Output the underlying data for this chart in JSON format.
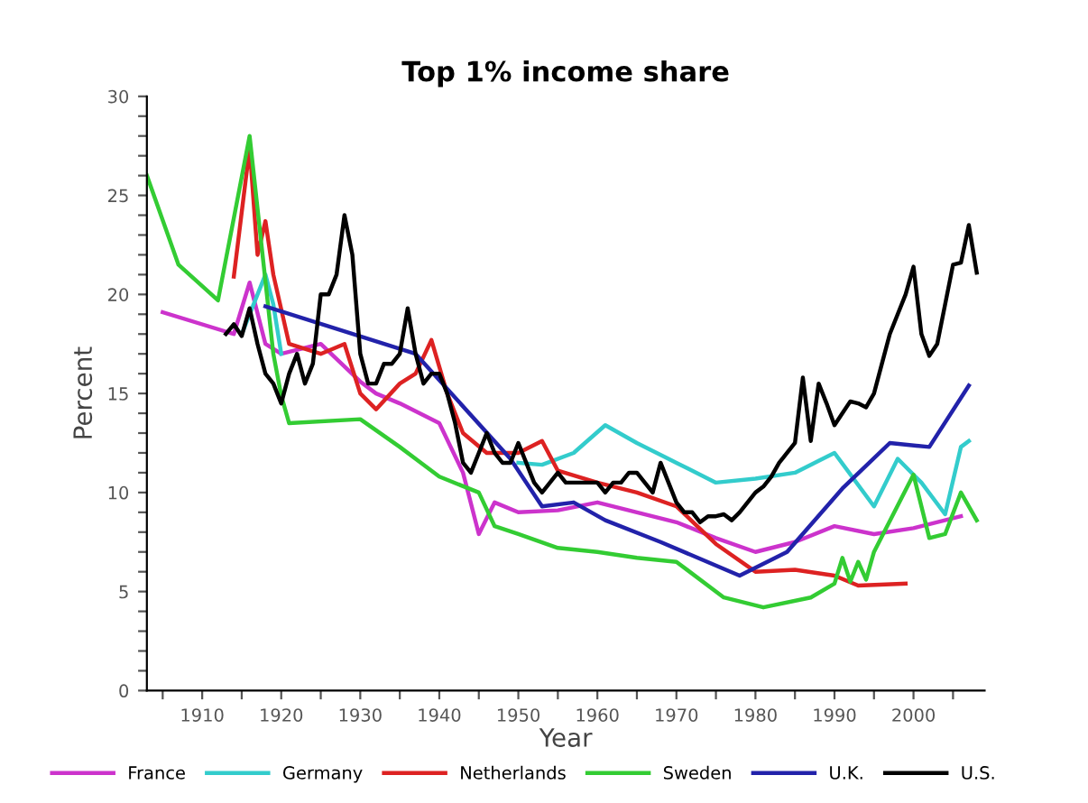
{
  "chart_data": {
    "type": "line",
    "title": "Top 1% income share",
    "xlabel": "Year",
    "ylabel": "Percent",
    "xlim": [
      1903,
      2009
    ],
    "ylim": [
      0,
      30
    ],
    "xticks": [
      {
        "value": 1905,
        "label": null
      },
      1910,
      {
        "value": 1915,
        "label": null
      },
      1920,
      {
        "value": 1925,
        "label": null
      },
      1930,
      {
        "value": 1935,
        "label": null
      },
      1940,
      {
        "value": 1945,
        "label": null
      },
      1950,
      {
        "value": 1955,
        "label": null
      },
      1960,
      {
        "value": 1965,
        "label": null
      },
      1970,
      {
        "value": 1975,
        "label": null
      },
      1980,
      {
        "value": 1985,
        "label": null
      },
      1990,
      {
        "value": 1995,
        "label": null
      },
      2000,
      {
        "value": 2005,
        "label": null
      }
    ],
    "yticks": [
      0,
      {
        "value": 1,
        "label": null
      },
      {
        "value": 2,
        "label": null
      },
      {
        "value": 3,
        "label": null
      },
      {
        "value": 4,
        "label": null
      },
      5,
      {
        "value": 6,
        "label": null
      },
      {
        "value": 7,
        "label": null
      },
      {
        "value": 8,
        "label": null
      },
      {
        "value": 9,
        "label": null
      },
      10,
      {
        "value": 11,
        "label": null
      },
      {
        "value": 12,
        "label": null
      },
      {
        "value": 13,
        "label": null
      },
      {
        "value": 14,
        "label": null
      },
      15,
      {
        "value": 16,
        "label": null
      },
      {
        "value": 17,
        "label": null
      },
      {
        "value": 18,
        "label": null
      },
      {
        "value": 19,
        "label": null
      },
      20,
      {
        "value": 21,
        "label": null
      },
      {
        "value": 22,
        "label": null
      },
      {
        "value": 23,
        "label": null
      },
      {
        "value": 24,
        "label": null
      },
      25,
      {
        "value": 26,
        "label": null
      },
      {
        "value": 27,
        "label": null
      },
      {
        "value": 28,
        "label": null
      },
      {
        "value": 29,
        "label": null
      },
      30
    ],
    "grid": false,
    "legend": "bottom",
    "marker": "none",
    "line_style": "solid",
    "series": [
      {
        "name": "France",
        "color": "#cc33cc",
        "x": [
          1905,
          1914,
          1916,
          1918,
          1920,
          1925,
          1930,
          1932,
          1935,
          1940,
          1943,
          1945,
          1947,
          1950,
          1955,
          1960,
          1965,
          1970,
          1975,
          1980,
          1985,
          1990,
          1995,
          2000,
          2006
        ],
        "values": [
          19.1,
          18,
          20.6,
          17.5,
          17,
          17.5,
          15.6,
          15,
          14.5,
          13.5,
          11,
          7.9,
          9.5,
          9,
          9.1,
          9.5,
          9,
          8.5,
          7.7,
          7,
          7.5,
          8.3,
          7.9,
          8.2,
          8.8
        ]
      },
      {
        "name": "Germany",
        "color": "#33cccc",
        "x": [
          1915,
          1918,
          1919,
          1920,
          1925,
          1950,
          1953,
          1957,
          1961,
          1965,
          1970,
          1975,
          1980,
          1985,
          1990,
          1995,
          1998,
          2001,
          2004,
          2006,
          2007
        ],
        "values": [
          18,
          21,
          19.5,
          17,
          null,
          11.5,
          11.4,
          12,
          13.4,
          12.5,
          11.5,
          10.5,
          10.7,
          11,
          12,
          9.3,
          11.7,
          10.5,
          8.9,
          12.3,
          12.6
        ]
      },
      {
        "name": "Netherlands",
        "color": "#dd2222",
        "x": [
          1914,
          1916,
          1917,
          1918,
          1919,
          1921,
          1925,
          1928,
          1930,
          1932,
          1935,
          1937,
          1939,
          1941,
          1943,
          1946,
          1950,
          1953,
          1955,
          1960,
          1965,
          1970,
          1975,
          1980,
          1985,
          1990,
          1993,
          1999
        ],
        "values": [
          20.9,
          27.4,
          22,
          23.7,
          21,
          17.5,
          17,
          17.5,
          15,
          14.2,
          15.5,
          16,
          17.7,
          15,
          13,
          12,
          12,
          12.6,
          11.1,
          10.5,
          10,
          9.3,
          7.4,
          6,
          6.1,
          5.8,
          5.3,
          5.4
        ]
      },
      {
        "name": "Sweden",
        "color": "#33cc33",
        "x": [
          1903,
          1907,
          1912,
          1916,
          1919,
          1920,
          1921,
          1930,
          1935,
          1940,
          1945,
          1947,
          1950,
          1955,
          1960,
          1965,
          1970,
          1976,
          1981,
          1987,
          1990,
          1991,
          1992,
          1993,
          1994,
          1995,
          2000,
          2002,
          2004,
          2006,
          2008
        ],
        "values": [
          26,
          21.5,
          19.7,
          28,
          17,
          14.9,
          13.5,
          13.7,
          12.3,
          10.8,
          10,
          8.3,
          7.9,
          7.2,
          7,
          6.7,
          6.5,
          4.7,
          4.2,
          4.7,
          5.4,
          6.7,
          5.5,
          6.5,
          5.6,
          7,
          10.9,
          7.7,
          7.9,
          10,
          8.6
        ]
      },
      {
        "name": "U.K.",
        "color": "#2222aa",
        "x": [
          1918,
          1937,
          1949,
          1953,
          1957,
          1961,
          1968,
          1978,
          1984,
          1991,
          1997,
          2002,
          2007
        ],
        "values": [
          19.4,
          17,
          11.7,
          9.3,
          9.5,
          8.6,
          7.5,
          5.8,
          7,
          10.2,
          12.5,
          12.3,
          15.4
        ]
      },
      {
        "name": "U.S.",
        "color": "#000000",
        "x": [
          1913,
          1914,
          1915,
          1916,
          1917,
          1918,
          1919,
          1920,
          1921,
          1922,
          1923,
          1924,
          1925,
          1926,
          1927,
          1928,
          1929,
          1930,
          1931,
          1932,
          1933,
          1934,
          1935,
          1936,
          1937,
          1938,
          1939,
          1940,
          1941,
          1942,
          1943,
          1944,
          1945,
          1946,
          1947,
          1948,
          1949,
          1950,
          1951,
          1952,
          1953,
          1954,
          1955,
          1956,
          1957,
          1958,
          1959,
          1960,
          1961,
          1962,
          1963,
          1964,
          1965,
          1966,
          1967,
          1968,
          1969,
          1970,
          1971,
          1972,
          1973,
          1974,
          1975,
          1976,
          1977,
          1978,
          1979,
          1980,
          1981,
          1982,
          1983,
          1984,
          1985,
          1986,
          1987,
          1988,
          1989,
          1990,
          1991,
          1992,
          1993,
          1994,
          1995,
          1996,
          1997,
          1998,
          1999,
          2000,
          2001,
          2002,
          2003,
          2004,
          2005,
          2006,
          2007,
          2008
        ],
        "values": [
          18,
          18.5,
          17.9,
          19.3,
          17.5,
          16,
          15.5,
          14.5,
          16,
          17,
          15.5,
          16.5,
          20,
          20,
          21,
          24,
          22,
          17,
          15.5,
          15.5,
          16.5,
          16.5,
          17,
          19.3,
          17,
          15.5,
          16,
          16,
          15,
          13.5,
          11.5,
          11,
          12,
          13,
          12,
          11.5,
          11.5,
          12.5,
          11.5,
          10.5,
          10,
          10.5,
          11,
          10.5,
          10.5,
          10.5,
          10.5,
          10.5,
          10,
          10.5,
          10.5,
          11,
          11,
          10.5,
          10,
          11.5,
          10.5,
          9.5,
          9,
          9,
          8.5,
          8.8,
          8.8,
          8.9,
          8.6,
          9,
          9.5,
          10,
          10.3,
          10.8,
          11.5,
          12,
          12.5,
          15.8,
          12.6,
          15.5,
          14.5,
          13.4,
          14,
          14.6,
          14.5,
          14.3,
          15,
          16.5,
          18,
          19,
          20,
          21.4,
          18,
          16.9,
          17.5,
          19.5,
          21.5,
          21.6,
          23.5,
          21.1
        ]
      }
    ]
  }
}
